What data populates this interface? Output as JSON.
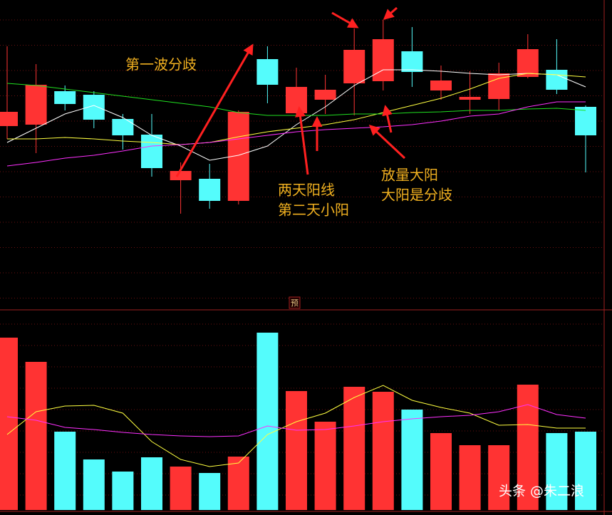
{
  "chart_data": [
    {
      "type": "candlestick",
      "ylim": [
        0,
        435
      ],
      "up_color": "#ff3333",
      "down_color": "#54fcfc",
      "open": [
        258,
        260,
        307,
        302,
        268,
        246,
        182,
        184,
        153,
        352,
        276,
        295,
        318,
        321,
        363,
        308,
        295,
        296,
        327,
        337,
        285
      ],
      "high": [
        370,
        345,
        315,
        307,
        275,
        275,
        207,
        205,
        280,
        370,
        340,
        330,
        395,
        407,
        397,
        343,
        335,
        347,
        387,
        380,
        287
      ],
      "low": [
        240,
        220,
        280,
        255,
        225,
        187,
        135,
        142,
        148,
        290,
        272,
        275,
        273,
        308,
        313,
        295,
        275,
        280,
        325,
        303,
        193
      ],
      "close": [
        278,
        316,
        289,
        267,
        245,
        199,
        195,
        153,
        278,
        316,
        313,
        309,
        365,
        380,
        334,
        322,
        299,
        332,
        366,
        309,
        245
      ],
      "series": [
        {
          "color": "#ffffff",
          "values": [
            235,
            255,
            275,
            287,
            270,
            245,
            230,
            210,
            217,
            230,
            260,
            285,
            315,
            337,
            337,
            335,
            332,
            330,
            332,
            330,
            313
          ]
        },
        {
          "color": "#ffff40",
          "values": [
            240,
            240,
            242,
            240,
            237,
            235,
            232,
            235,
            243,
            250,
            255,
            260,
            267,
            277,
            287,
            297,
            310,
            325,
            332,
            330,
            327
          ]
        },
        {
          "color": "#20e020",
          "values": [
            318,
            315,
            310,
            305,
            300,
            295,
            290,
            285,
            277,
            273,
            273,
            273,
            275,
            275,
            277,
            278,
            280,
            280,
            282,
            283,
            280
          ]
        },
        {
          "color": "#ff30ff",
          "values": [
            202,
            207,
            213,
            217,
            223,
            230,
            232,
            235,
            240,
            245,
            250,
            253,
            255,
            257,
            260,
            265,
            272,
            275,
            285,
            292,
            292
          ]
        }
      ],
      "annotations": [
        "第一波分歧",
        "两天阳线",
        "第二天小阳",
        "放量大阳",
        "大阳是分歧"
      ],
      "marker": "预"
    },
    {
      "type": "bar",
      "ylim": [
        0,
        281
      ],
      "up_color": "#ff3333",
      "down_color": "#54fcfc",
      "values": [
        242,
        208,
        110,
        71,
        54,
        74,
        61,
        52,
        75,
        249,
        167,
        124,
        173,
        166,
        141,
        108,
        91,
        91,
        176,
        108,
        110
      ],
      "series": [
        {
          "color": "#ffff40",
          "values": [
            106,
            138,
            146,
            147,
            136,
            96,
            71,
            61,
            66,
            106,
            124,
            136,
            158,
            175,
            154,
            144,
            136,
            119,
            120,
            115,
            115
          ]
        },
        {
          "color": "#ff30ff",
          "values": [
            131,
            126,
            116,
            113,
            109,
            106,
            104,
            103,
            104,
            118,
            112,
            113,
            118,
            124,
            128,
            131,
            133,
            138,
            148,
            134,
            129
          ]
        }
      ]
    }
  ],
  "watermark": "头条 @朱二浪"
}
